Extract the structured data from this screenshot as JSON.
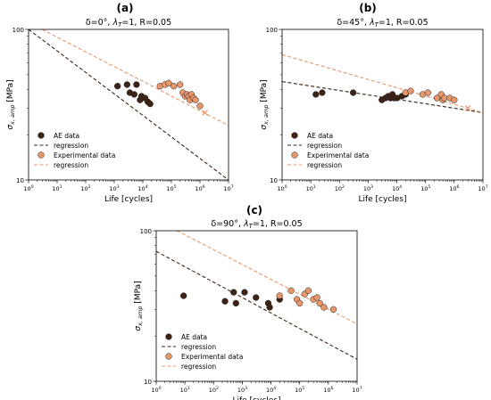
{
  "chart_data": [
    {
      "type": "scatter",
      "panel_label": "(a)",
      "title": "δ=0°, λT=1, R=0.05",
      "title_parts": {
        "pre": "δ=0°, ",
        "sym": "λ",
        "sub": "T",
        "post": "=1, R=0.05"
      },
      "xlabel": "Life [cycles]",
      "ylabel_main": "σ",
      "ylabel_sub": "x, amp",
      "ylabel_unit": " [MPa]",
      "xscale": "log",
      "yscale": "log",
      "xlim": [
        1,
        10000000
      ],
      "ylim": [
        10,
        100
      ],
      "y_ticks": [
        "10",
        "100"
      ],
      "x_ticks": [
        {
          "base": "10",
          "exp": "0"
        },
        {
          "base": "10",
          "exp": "1"
        },
        {
          "base": "10",
          "exp": "2"
        },
        {
          "base": "10",
          "exp": "3"
        },
        {
          "base": "10",
          "exp": "4"
        },
        {
          "base": "10",
          "exp": "5"
        },
        {
          "base": "10",
          "exp": "6"
        },
        {
          "base": "10",
          "exp": "7"
        }
      ],
      "legend_position": "lower-left",
      "legend": [
        "AE data",
        "regression",
        "Experimental data",
        "regression"
      ],
      "series": [
        {
          "name": "AE data",
          "kind": "points",
          "color": "#3d2314",
          "x": [
            1300,
            2800,
            3500,
            5000,
            6000,
            8000,
            9000,
            12000,
            15000,
            18000
          ],
          "y": [
            42,
            43,
            38,
            37,
            43,
            34,
            36,
            35,
            33,
            32
          ]
        },
        {
          "name": "regression",
          "kind": "line",
          "color": "#3d2314",
          "dash": "dashed",
          "x": [
            1,
            10000000
          ],
          "y": [
            100,
            10
          ]
        },
        {
          "name": "Experimental data",
          "kind": "points",
          "color": "#e8976b",
          "x": [
            40000,
            60000,
            80000,
            120000,
            200000,
            250000,
            300000,
            350000,
            400000,
            450000,
            500000,
            600000,
            700000,
            1000000
          ],
          "y": [
            42,
            43,
            44,
            42,
            43,
            38,
            36,
            37,
            36,
            34,
            37,
            35,
            34,
            31
          ]
        },
        {
          "name": "regression",
          "kind": "line",
          "color": "#e8976b",
          "dash": "dashed",
          "x": [
            3,
            10000000
          ],
          "y": [
            100,
            23
          ]
        },
        {
          "kind": "cross",
          "color": "#e8976b",
          "x": [
            1500000
          ],
          "y": [
            28
          ]
        }
      ]
    },
    {
      "type": "scatter",
      "panel_label": "(b)",
      "title": "δ=45°, λT=1, R=0.05",
      "title_parts": {
        "pre": "δ=45°, ",
        "sym": "λ",
        "sub": "T",
        "post": "=1, R=0.05"
      },
      "xlabel": "Life [cycles]",
      "ylabel_main": "σ",
      "ylabel_sub": "x, amp",
      "ylabel_unit": " [MPa]",
      "xscale": "log",
      "yscale": "log",
      "xlim": [
        1,
        10000000
      ],
      "ylim": [
        10,
        100
      ],
      "y_ticks": [
        "10",
        "100"
      ],
      "x_ticks": [
        {
          "base": "10",
          "exp": "0"
        },
        {
          "base": "10",
          "exp": "1"
        },
        {
          "base": "10",
          "exp": "2"
        },
        {
          "base": "10",
          "exp": "3"
        },
        {
          "base": "10",
          "exp": "4"
        },
        {
          "base": "10",
          "exp": "5"
        },
        {
          "base": "10",
          "exp": "6"
        },
        {
          "base": "10",
          "exp": "7"
        }
      ],
      "legend_position": "lower-left",
      "legend": [
        "AE data",
        "regression",
        "Experimental data",
        "regression"
      ],
      "series": [
        {
          "name": "AE data",
          "kind": "points",
          "color": "#3d2314",
          "x": [
            15,
            25,
            300,
            3000,
            4000,
            5000,
            6000,
            7000,
            8000,
            10000,
            15000,
            20000
          ],
          "y": [
            37,
            38,
            38,
            34,
            35,
            36,
            35,
            37,
            35,
            35,
            36,
            37
          ]
        },
        {
          "name": "regression",
          "kind": "line",
          "color": "#3d2314",
          "dash": "dashed",
          "x": [
            1,
            10000000
          ],
          "y": [
            45,
            28
          ]
        },
        {
          "name": "Experimental data",
          "kind": "points",
          "color": "#e8976b",
          "x": [
            20000,
            30000,
            80000,
            120000,
            250000,
            350000,
            400000,
            450000,
            700000,
            1000000
          ],
          "y": [
            38,
            39,
            37,
            38,
            35,
            37,
            34,
            35,
            35,
            34
          ]
        },
        {
          "name": "regression",
          "kind": "line",
          "color": "#e8976b",
          "dash": "dashed",
          "x": [
            1,
            10000000
          ],
          "y": [
            68,
            28
          ]
        },
        {
          "kind": "cross",
          "color": "#e8976b",
          "x": [
            3000000
          ],
          "y": [
            30
          ]
        }
      ]
    },
    {
      "type": "scatter",
      "panel_label": "(c)",
      "title": "δ=90°, λT=1, R=0.05",
      "title_parts": {
        "pre": "δ=90°, ",
        "sym": "λ",
        "sub": "T",
        "post": "=1, R=0.05"
      },
      "xlabel": "Life [cycles]",
      "ylabel_main": "σ",
      "ylabel_sub": "x, amp",
      "ylabel_unit": " [MPa]",
      "xscale": "log",
      "yscale": "log",
      "xlim": [
        1,
        10000000
      ],
      "ylim": [
        10,
        100
      ],
      "y_ticks": [
        "10",
        "100"
      ],
      "x_ticks": [
        {
          "base": "10",
          "exp": "0"
        },
        {
          "base": "10",
          "exp": "1"
        },
        {
          "base": "10",
          "exp": "2"
        },
        {
          "base": "10",
          "exp": "3"
        },
        {
          "base": "10",
          "exp": "4"
        },
        {
          "base": "10",
          "exp": "5"
        },
        {
          "base": "10",
          "exp": "6"
        },
        {
          "base": "10",
          "exp": "7"
        }
      ],
      "legend_position": "lower-left",
      "legend": [
        "AE data",
        "regression",
        "Experimental data",
        "regression"
      ],
      "series": [
        {
          "name": "AE data",
          "kind": "points",
          "color": "#3d2314",
          "x": [
            9,
            250,
            500,
            600,
            1200,
            3000,
            8000,
            9000,
            20000
          ],
          "y": [
            37,
            34,
            39,
            33,
            39,
            36,
            33,
            31,
            35
          ]
        },
        {
          "name": "regression",
          "kind": "line",
          "color": "#3d2314",
          "dash": "dashed",
          "x": [
            1,
            10000000
          ],
          "y": [
            73,
            14
          ]
        },
        {
          "name": "Experimental data",
          "kind": "points",
          "color": "#e8976b",
          "x": [
            20000,
            50000,
            80000,
            100000,
            150000,
            200000,
            300000,
            400000,
            500000,
            700000,
            1500000
          ],
          "y": [
            37,
            40,
            35,
            33,
            38,
            40,
            35,
            36,
            33,
            31,
            30
          ]
        },
        {
          "name": "regression",
          "kind": "line",
          "color": "#e8976b",
          "dash": "dashed",
          "x": [
            1,
            10000000
          ],
          "y": [
            118,
            24
          ]
        }
      ]
    }
  ]
}
